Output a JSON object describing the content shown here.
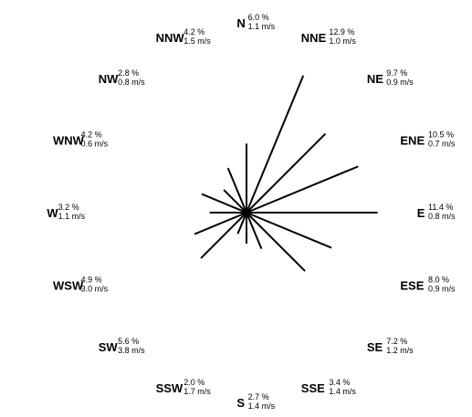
{
  "chart_data": {
    "type": "wind-rose",
    "directions": [
      {
        "dir": "N",
        "angle": 0,
        "frequency": 6.0,
        "frequency_label": "6.0 %",
        "speed": 1.1,
        "speed_label": "1.1 m/s"
      },
      {
        "dir": "NNE",
        "angle": 22.5,
        "frequency": 12.9,
        "frequency_label": "12.9 %",
        "speed": 1.0,
        "speed_label": "1.0 m/s"
      },
      {
        "dir": "NE",
        "angle": 45,
        "frequency": 9.7,
        "frequency_label": "9.7 %",
        "speed": 0.9,
        "speed_label": "0.9 m/s"
      },
      {
        "dir": "ENE",
        "angle": 67.5,
        "frequency": 10.5,
        "frequency_label": "10.5 %",
        "speed": 0.7,
        "speed_label": "0.7 m/s"
      },
      {
        "dir": "E",
        "angle": 90,
        "frequency": 11.4,
        "frequency_label": "11.4 %",
        "speed": 0.8,
        "speed_label": "0.8 m/s"
      },
      {
        "dir": "ESE",
        "angle": 112.5,
        "frequency": 8.0,
        "frequency_label": "8.0 %",
        "speed": 0.9,
        "speed_label": "0.9 m/s"
      },
      {
        "dir": "SE",
        "angle": 135,
        "frequency": 7.2,
        "frequency_label": "7.2 %",
        "speed": 1.2,
        "speed_label": "1.2 m/s"
      },
      {
        "dir": "SSE",
        "angle": 157.5,
        "frequency": 3.4,
        "frequency_label": "3.4 %",
        "speed": 1.4,
        "speed_label": "1.4 m/s"
      },
      {
        "dir": "S",
        "angle": 180,
        "frequency": 2.7,
        "frequency_label": "2.7 %",
        "speed": 1.4,
        "speed_label": "1.4 m/s"
      },
      {
        "dir": "SSW",
        "angle": 202.5,
        "frequency": 2.0,
        "frequency_label": "2.0 %",
        "speed": 1.7,
        "speed_label": "1.7 m/s"
      },
      {
        "dir": "SW",
        "angle": 225,
        "frequency": 5.6,
        "frequency_label": "5.6 %",
        "speed": 3.8,
        "speed_label": "3.8 m/s"
      },
      {
        "dir": "WSW",
        "angle": 247.5,
        "frequency": 4.9,
        "frequency_label": "4.9 %",
        "speed": 3.0,
        "speed_label": "3.0 m/s"
      },
      {
        "dir": "W",
        "angle": 270,
        "frequency": 3.2,
        "frequency_label": "3.2 %",
        "speed": 1.1,
        "speed_label": "1.1 m/s"
      },
      {
        "dir": "WNW",
        "angle": 292.5,
        "frequency": 4.2,
        "frequency_label": "4.2 %",
        "speed": 0.6,
        "speed_label": "0.6 m/s"
      },
      {
        "dir": "NW",
        "angle": 315,
        "frequency": 2.8,
        "frequency_label": "2.8 %",
        "speed": 0.8,
        "speed_label": "0.8 m/s"
      },
      {
        "dir": "NNW",
        "angle": 337.5,
        "frequency": 4.2,
        "frequency_label": "4.2 %",
        "speed": 1.5,
        "speed_label": "1.5 m/s"
      }
    ],
    "legend": "none",
    "grid": false,
    "spoke_color": "#000000",
    "label_color": "#000000",
    "background_color": "#ffffff"
  }
}
